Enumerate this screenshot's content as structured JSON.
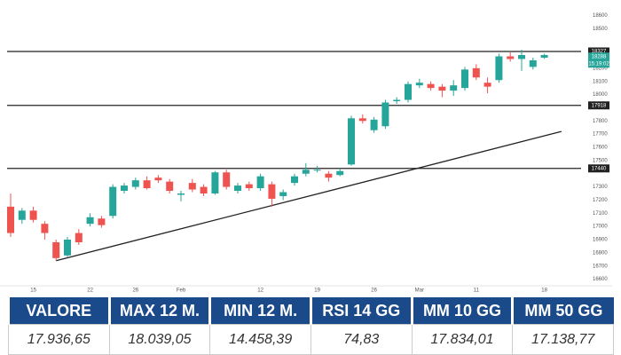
{
  "chart_data": {
    "type": "candlestick",
    "ohlc": {
      "open": [
        17150,
        17050,
        17120,
        17020,
        16880,
        16780,
        16950,
        17020,
        17060,
        17080,
        17270,
        17300,
        17350,
        17370,
        17340,
        17240,
        17330,
        17300,
        17250,
        17410,
        17270,
        17320,
        17290,
        17320,
        17230,
        17330,
        17400,
        17430,
        17400,
        17390,
        17470,
        17820,
        17730,
        17760,
        17950,
        17960,
        18070,
        18080,
        18060,
        18030,
        18050,
        18200,
        18090,
        18110,
        18290,
        18270,
        18210,
        18280
      ],
      "high": [
        17250,
        17140,
        17150,
        17040,
        16900,
        16920,
        16980,
        17100,
        17080,
        17320,
        17330,
        17370,
        17380,
        17390,
        17360,
        17270,
        17360,
        17320,
        17420,
        17430,
        17330,
        17340,
        17400,
        17340,
        17280,
        17400,
        17480,
        17460,
        17420,
        17440,
        17840,
        17850,
        17830,
        17960,
        17980,
        18100,
        18120,
        18100,
        18080,
        18110,
        18210,
        18230,
        18130,
        18310,
        18320,
        18340,
        18280,
        18310
      ],
      "low": [
        16920,
        17020,
        17030,
        16900,
        16740,
        16770,
        16860,
        17000,
        16990,
        17060,
        17250,
        17280,
        17280,
        17330,
        17250,
        17190,
        17260,
        17230,
        17240,
        17280,
        17250,
        17270,
        17270,
        17150,
        17200,
        17310,
        17380,
        17410,
        17340,
        17380,
        17460,
        17780,
        17710,
        17740,
        17930,
        17940,
        18050,
        18030,
        17980,
        17990,
        18030,
        18110,
        18010,
        18090,
        18250,
        18180,
        18190,
        18270
      ],
      "close": [
        16950,
        17120,
        17050,
        16950,
        16760,
        16900,
        16880,
        17070,
        17010,
        17300,
        17310,
        17350,
        17290,
        17350,
        17270,
        17250,
        17280,
        17250,
        17410,
        17300,
        17310,
        17290,
        17380,
        17210,
        17260,
        17380,
        17430,
        17430,
        17370,
        17420,
        17820,
        17800,
        17810,
        17940,
        17960,
        18080,
        18090,
        18050,
        18030,
        18070,
        18190,
        18130,
        18060,
        18290,
        18270,
        18300,
        18260,
        18300
      ]
    },
    "up_color": "#26a69a",
    "down_color": "#ef5350",
    "ylim": [
      16550,
      18650
    ],
    "yticks": [
      16600,
      16700,
      16800,
      16900,
      17000,
      17100,
      17200,
      17300,
      17500,
      17600,
      17700,
      17800,
      18000,
      18100,
      18200,
      18500,
      18600
    ],
    "xticks": [
      {
        "value": 2,
        "label": "15"
      },
      {
        "value": 7,
        "label": "22"
      },
      {
        "value": 11,
        "label": "26"
      },
      {
        "value": 15,
        "label": "Feb"
      },
      {
        "value": 22,
        "label": "12"
      },
      {
        "value": 27,
        "label": "19"
      },
      {
        "value": 32,
        "label": "26"
      },
      {
        "value": 36,
        "label": "Mar"
      },
      {
        "value": 41,
        "label": "11"
      },
      {
        "value": 47,
        "label": "18"
      }
    ],
    "levels": [
      18327,
      17918,
      17440
    ],
    "last_price": 18288,
    "last_time": "15:19:02",
    "trendline": {
      "x": [
        4,
        48.5
      ],
      "y": [
        16740,
        17720
      ]
    }
  },
  "table": {
    "headers": [
      "VALORE",
      "MAX 12 M.",
      "MIN 12 M.",
      "RSI 14 GG",
      "MM 10 GG",
      "MM 50 GG"
    ],
    "values": [
      "17.936,65",
      "18.039,05",
      "14.458,39",
      "74,83",
      "17.834,01",
      "17.138,77"
    ]
  }
}
